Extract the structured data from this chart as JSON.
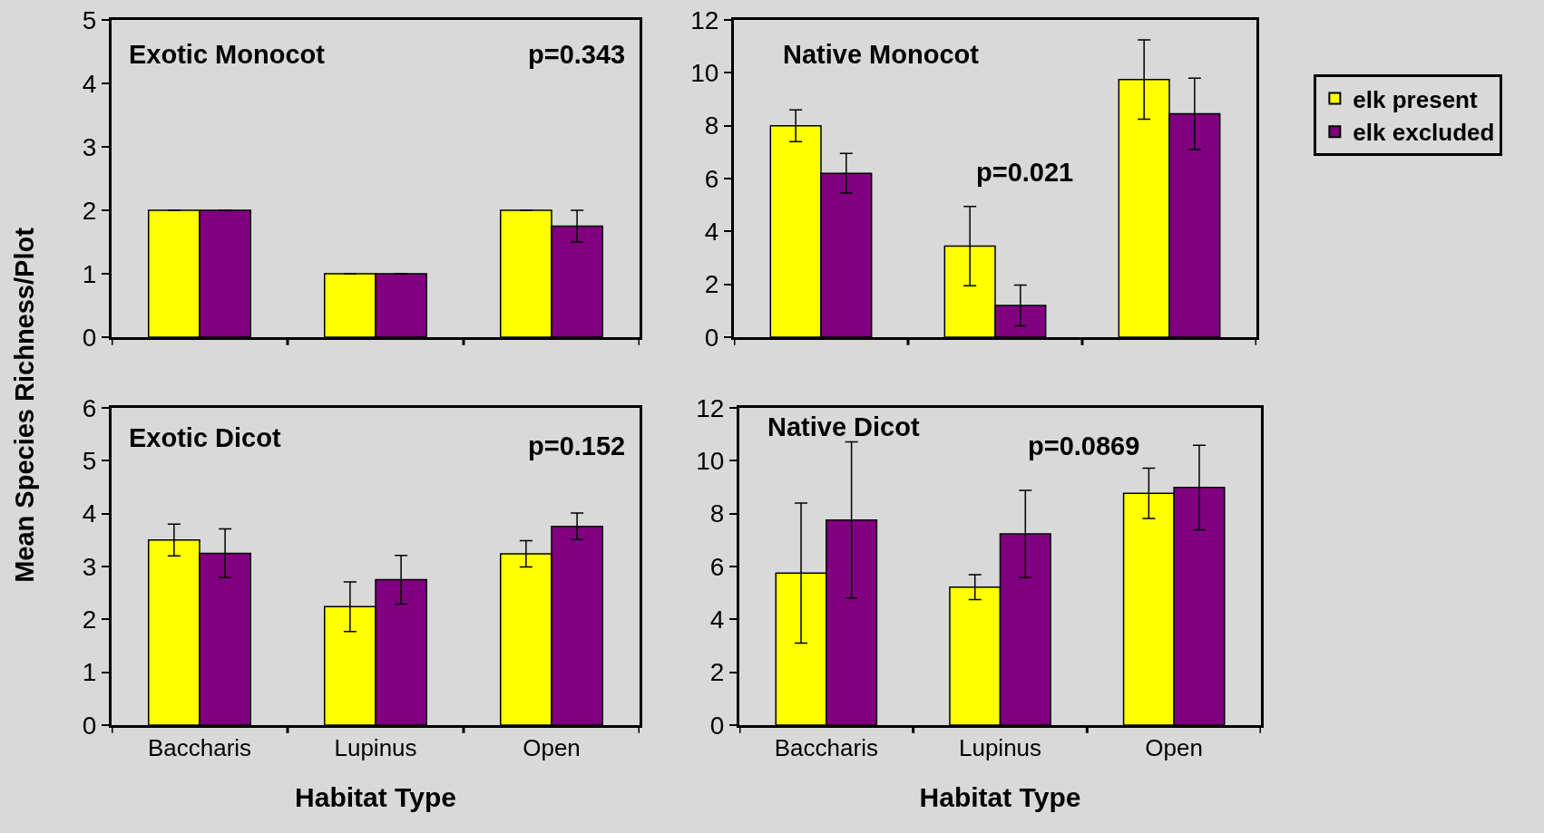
{
  "chart_data": [
    {
      "type": "bar",
      "title": "Exotic Monocot",
      "ylabel": "Mean Species Richness/Plot",
      "annotations": [
        "p=0.343"
      ],
      "categories": [
        null,
        null,
        null
      ],
      "tick_labels": "y",
      "ylim": [
        0,
        5
      ],
      "yticks": [
        0,
        1,
        2,
        3,
        4,
        5
      ],
      "grid": false,
      "legend": false,
      "series": [
        {
          "color": "#ffff00",
          "values": [
            2,
            1,
            2
          ],
          "errors": [
            0,
            0,
            0
          ]
        },
        {
          "color": "#800080",
          "values": [
            2,
            1,
            1.75
          ],
          "errors": [
            0,
            0,
            0.25
          ]
        }
      ]
    },
    {
      "type": "bar",
      "title": "Native Monocot",
      "annotations": [
        "p=0.021"
      ],
      "categories": [
        null,
        null,
        null
      ],
      "tick_labels": "y",
      "ylim": [
        0,
        12
      ],
      "yticks": [
        0,
        2,
        4,
        6,
        8,
        10,
        12
      ],
      "grid": false,
      "legend": "right",
      "series": [
        {
          "name": "elk present",
          "color": "#ffff00",
          "values": [
            8,
            3.45,
            9.75
          ],
          "errors": [
            0.6,
            1.5,
            1.5
          ]
        },
        {
          "name": "elk excluded",
          "color": "#800080",
          "values": [
            6.2,
            1.2,
            8.45
          ],
          "errors": [
            0.75,
            0.77,
            1.35
          ]
        }
      ]
    },
    {
      "type": "bar",
      "title": "Exotic Dicot",
      "xlabel": "Habitat Type",
      "annotations": [
        "p=0.152"
      ],
      "categories": [
        "Baccharis",
        "Lupinus",
        "Open"
      ],
      "ylim": [
        0,
        6
      ],
      "yticks": [
        0,
        1,
        2,
        3,
        4,
        5,
        6
      ],
      "grid": false,
      "legend": false,
      "series": [
        {
          "color": "#ffff00",
          "values": [
            3.5,
            2.24,
            3.24
          ],
          "errors": [
            0.3,
            0.47,
            0.25
          ]
        },
        {
          "color": "#800080",
          "values": [
            3.25,
            2.75,
            3.76
          ],
          "errors": [
            0.46,
            0.46,
            0.25
          ]
        }
      ]
    },
    {
      "type": "bar",
      "title": "Native Dicot",
      "xlabel": "Habitat Type",
      "annotations": [
        "p=0.0869"
      ],
      "categories": [
        "Baccharis",
        "Lupinus",
        "Open"
      ],
      "ylim": [
        0,
        12
      ],
      "yticks": [
        0,
        2,
        4,
        6,
        8,
        10,
        12
      ],
      "grid": false,
      "legend": false,
      "series": [
        {
          "color": "#ffff00",
          "values": [
            5.75,
            5.22,
            8.77
          ],
          "errors": [
            2.65,
            0.47,
            0.95
          ]
        },
        {
          "color": "#800080",
          "values": [
            7.76,
            7.23,
            8.99
          ],
          "errors": [
            2.95,
            1.65,
            1.6
          ]
        }
      ]
    }
  ]
}
